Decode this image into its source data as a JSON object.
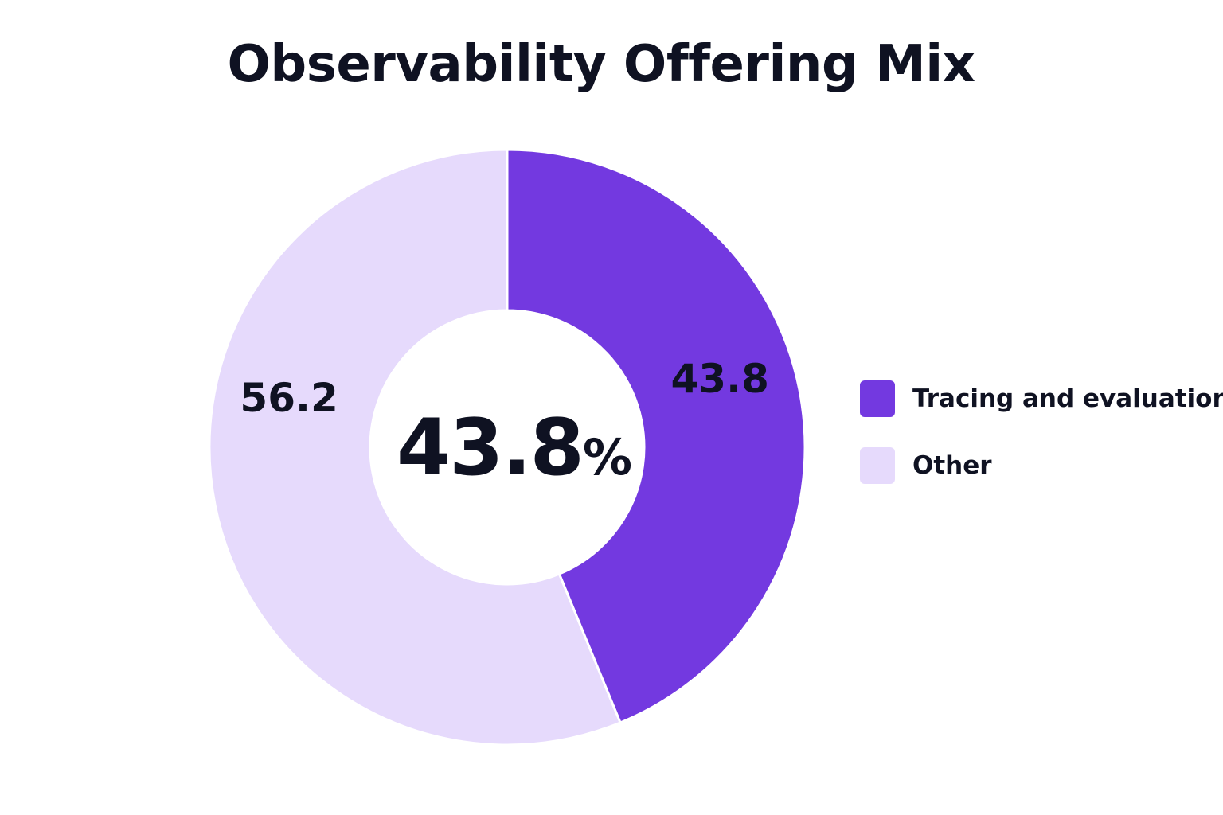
{
  "chart_data": {
    "type": "pie",
    "title": "Observability Offering Mix",
    "center_label": {
      "value": "43.8",
      "unit": "%"
    },
    "slices": [
      {
        "name": "Tracing and evaluation",
        "value": 43.8,
        "label": "43.8",
        "color": "#7339e0"
      },
      {
        "name": "Other",
        "value": 56.2,
        "label": "56.2",
        "color": "#e6dafc"
      }
    ],
    "legend_position": "right"
  }
}
